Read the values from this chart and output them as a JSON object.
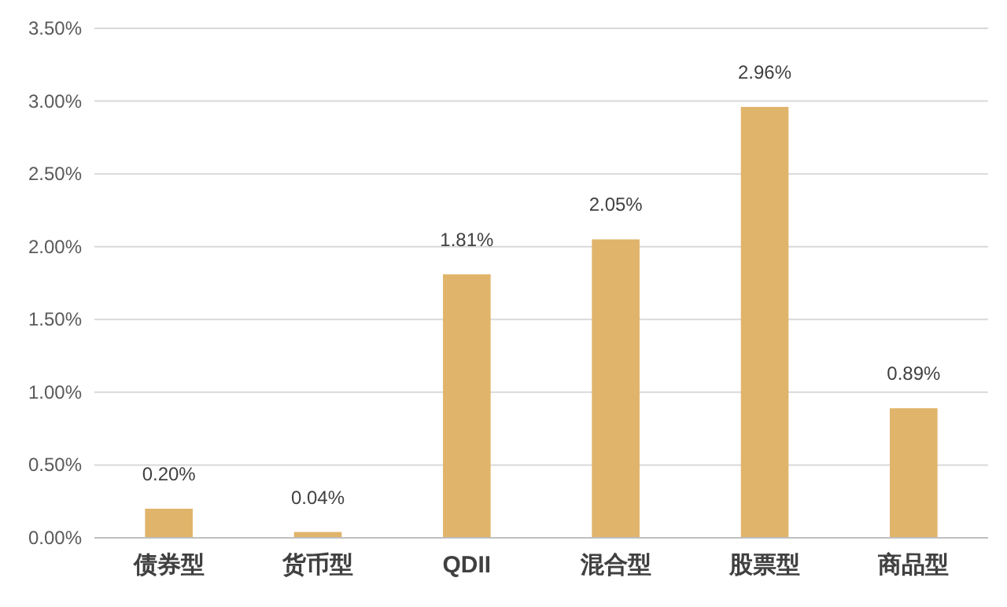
{
  "chart_data": {
    "type": "bar",
    "categories": [
      "债券型",
      "货币型",
      "QDII",
      "混合型",
      "股票型",
      "商品型"
    ],
    "values": [
      0.2,
      0.04,
      1.81,
      2.05,
      2.96,
      0.89
    ],
    "value_labels": [
      "0.20%",
      "0.04%",
      "1.81%",
      "2.05%",
      "2.96%",
      "0.89%"
    ],
    "color": "#e0b46a",
    "ylim": [
      0,
      3.5
    ],
    "yticks": [
      {
        "value": 0,
        "label": "0.00%"
      },
      {
        "value": 0.5,
        "label": "0.50%"
      },
      {
        "value": 1,
        "label": "1.00%"
      },
      {
        "value": 1.5,
        "label": "1.50%"
      },
      {
        "value": 2,
        "label": "2.00%"
      },
      {
        "value": 2.5,
        "label": "2.50%"
      },
      {
        "value": 3,
        "label": "3.00%"
      },
      {
        "value": 3.5,
        "label": "3.50%"
      }
    ],
    "grid": "y"
  }
}
